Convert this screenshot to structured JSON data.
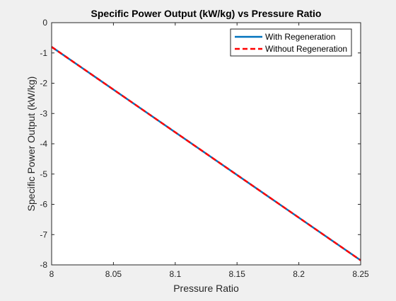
{
  "chart_data": {
    "type": "line",
    "title": "Specific Power Output (kW/kg) vs Pressure Ratio",
    "xlabel": "Pressure Ratio",
    "ylabel": "Specific Power Output (kW/kg)",
    "xlim": [
      8,
      8.25
    ],
    "ylim": [
      -8,
      0
    ],
    "xticks": [
      8,
      8.05,
      8.1,
      8.15,
      8.2,
      8.25
    ],
    "yticks": [
      0,
      -1,
      -2,
      -3,
      -4,
      -5,
      -6,
      -7,
      -8
    ],
    "xtick_labels": [
      "8",
      "8.05",
      "8.1",
      "8.15",
      "8.2",
      "8.25"
    ],
    "ytick_labels": [
      "0",
      "-1",
      "-2",
      "-3",
      "-4",
      "-5",
      "-6",
      "-7",
      "-8"
    ],
    "grid": false,
    "legend_position": "top-right",
    "series": [
      {
        "name": "With Regeneration",
        "color": "#0072BD",
        "style": "solid",
        "x": [
          8,
          8.25
        ],
        "y": [
          -0.8,
          -7.85
        ]
      },
      {
        "name": "Without Regeneration",
        "color": "#FF0000",
        "style": "dashed",
        "x": [
          8,
          8.25
        ],
        "y": [
          -0.8,
          -7.85
        ]
      }
    ]
  }
}
